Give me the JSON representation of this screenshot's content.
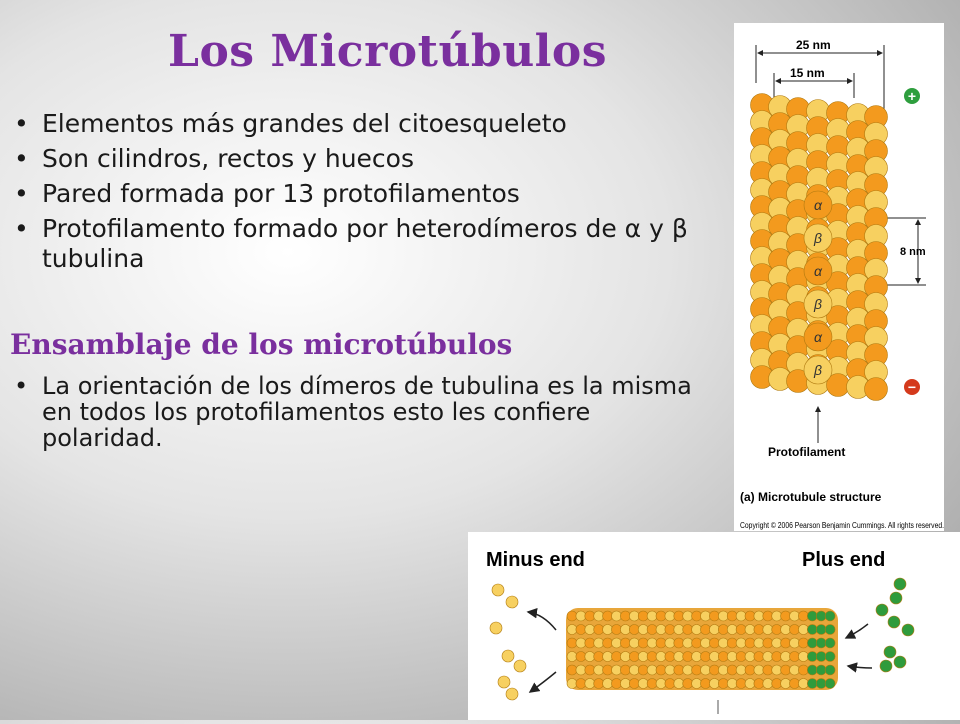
{
  "title": "Los Microtúbulos",
  "bullets": [
    "Elementos más grandes del citoesqueleto",
    "Son cilindros,  rectos y huecos",
    "Pared formada por 13  protofilamentos",
    "Protofilamento formado por heterodímeros de α y β tubulina"
  ],
  "subtitle": "Ensamblaje de los microtúbulos",
  "bullets2": [
    "La orientación de los dímeros de tubulina es la misma en todos los protofilamentos esto les confiere polaridad."
  ],
  "bullet_symbol": "•",
  "figure_structure": {
    "dim_outer": "25 nm",
    "dim_inner": "15 nm",
    "dim_dimer": "8 nm",
    "plus_sign": "+",
    "minus_sign": "−",
    "protofilament_label": "Protofilament",
    "caption": "(a) Microtubule structure",
    "copyright": "Copyright © 2006 Pearson Benjamin Cummings. All rights reserved.",
    "subunit_labels": [
      "α",
      "β",
      "α",
      "β",
      "α",
      "β"
    ]
  },
  "figure_polarity": {
    "minus_end": "Minus end",
    "plus_end": "Plus end"
  },
  "colors": {
    "title": "#7a2f9e",
    "alpha_tubulin": "#f39a1e",
    "beta_tubulin": "#f7d060",
    "plus_marker": "#2e9e3e",
    "minus_marker": "#d43a1c",
    "new_subunits": "#2f9b3c"
  }
}
